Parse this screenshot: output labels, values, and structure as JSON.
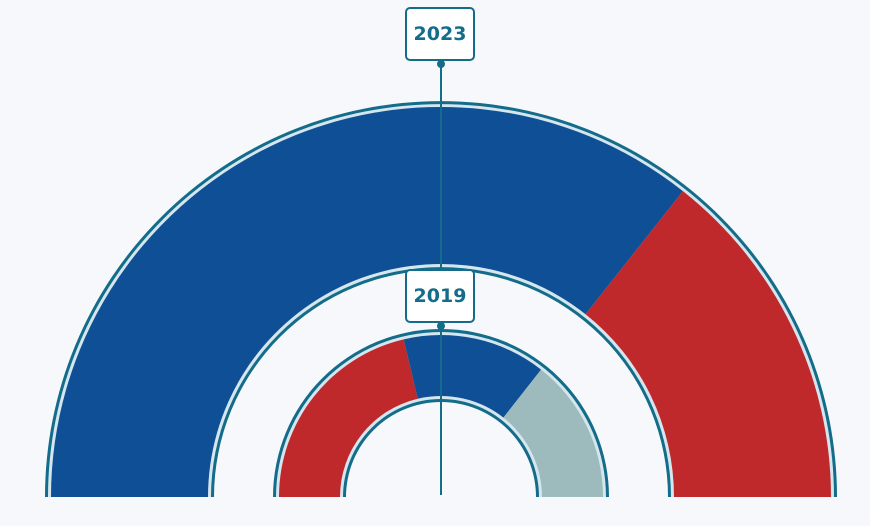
{
  "chart_data": {
    "type": "pie",
    "subtype": "nested-semicircle-donut",
    "title": "",
    "rings": [
      {
        "label": "2023",
        "position": "outer",
        "segments": [
          {
            "name": "Blue",
            "value": 71.3,
            "color": "#0E4F96"
          },
          {
            "name": "Red",
            "value": 28.7,
            "color": "#C0292C"
          }
        ]
      },
      {
        "label": "2019",
        "position": "inner",
        "segments": [
          {
            "name": "Red",
            "value": 42.6,
            "color": "#C0292C"
          },
          {
            "name": "Blue",
            "value": 28.6,
            "color": "#0E4F96"
          },
          {
            "name": "Gray",
            "value": 28.8,
            "color": "#9DBBBC"
          }
        ]
      }
    ],
    "legend": "none",
    "order": "clockwise from left"
  },
  "labels": {
    "outer": "2023",
    "inner": "2019"
  },
  "colors": {
    "outline": "#136C89",
    "background": "#F7F8FB"
  }
}
